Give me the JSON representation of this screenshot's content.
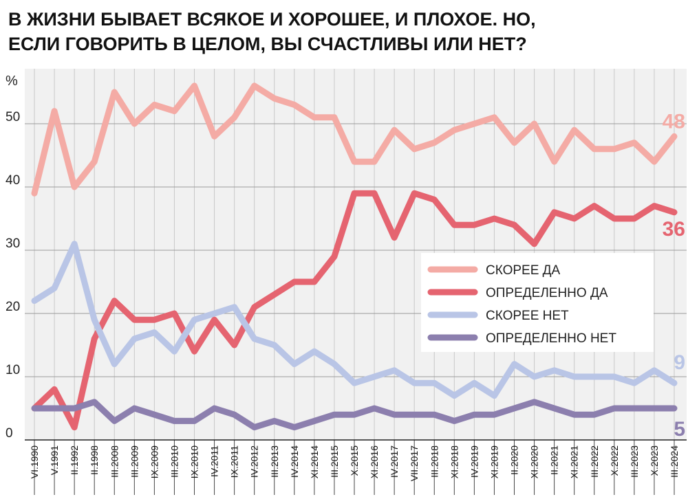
{
  "chart_data": {
    "type": "line",
    "title": [
      "В ЖИЗНИ БЫВАЕТ ВСЯКОЕ И ХОРОШЕЕ, И ПЛОХОЕ. НО,",
      "ЕСЛИ ГОВОРИТЬ В ЦЕЛОМ, ВЫ СЧАСТЛИВЫ ИЛИ НЕТ?"
    ],
    "y_label": "%",
    "categories": [
      "VI.1990",
      "V.1991",
      "II.1992",
      "II.1998",
      "III.2008",
      "III.2009",
      "IX.2009",
      "III.2010",
      "IX.2010",
      "IV.2011",
      "IX.2011",
      "IV.2012",
      "III.2013",
      "IV.2014",
      "XI.2014",
      "III.2015",
      "X.2015",
      "XI.2016",
      "IV.2017",
      "VII.2017",
      "III.2018",
      "XI.2018",
      "IV.2019",
      "XI.2019",
      "II.2020",
      "XI.2020",
      "II.2021",
      "XI.2021",
      "III.2022",
      "X.2022",
      "III.2023",
      "X.2023",
      "III.2024"
    ],
    "series": [
      {
        "name": "СКОРЕЕ ДА",
        "color": "#f4aba5",
        "values": [
          39,
          52,
          40,
          44,
          55,
          50,
          53,
          52,
          56,
          48,
          51,
          56,
          54,
          53,
          51,
          51,
          44,
          44,
          49,
          46,
          47,
          49,
          50,
          51,
          47,
          50,
          44,
          49,
          46,
          46,
          47,
          44,
          48
        ]
      },
      {
        "name": "ОПРЕДЕЛЕННО ДА",
        "color": "#e56470",
        "values": [
          5,
          8,
          2,
          16,
          22,
          19,
          19,
          20,
          14,
          19,
          15,
          21,
          23,
          25,
          25,
          29,
          39,
          39,
          32,
          39,
          38,
          34,
          34,
          35,
          34,
          31,
          36,
          35,
          37,
          35,
          35,
          37,
          36
        ]
      },
      {
        "name": "СКОРЕЕ НЕТ",
        "color": "#b9c5e6",
        "values": [
          22,
          24,
          31,
          19,
          12,
          16,
          17,
          14,
          19,
          20,
          21,
          16,
          15,
          12,
          14,
          12,
          9,
          10,
          11,
          9,
          9,
          7,
          9,
          7,
          12,
          10,
          11,
          10,
          10,
          10,
          9,
          11,
          9
        ]
      },
      {
        "name": "ОПРЕДЕЛЕННО НЕТ",
        "color": "#8c7fae",
        "values": [
          5,
          5,
          5,
          6,
          3,
          5,
          4,
          3,
          3,
          5,
          4,
          2,
          3,
          2,
          3,
          4,
          4,
          5,
          4,
          4,
          4,
          3,
          4,
          4,
          5,
          6,
          5,
          4,
          4,
          5,
          5,
          5,
          5
        ]
      }
    ],
    "ylim": [
      0,
      58
    ],
    "yticks": [
      0,
      10,
      20,
      30,
      40,
      50
    ],
    "grid": true,
    "legend": "right"
  }
}
